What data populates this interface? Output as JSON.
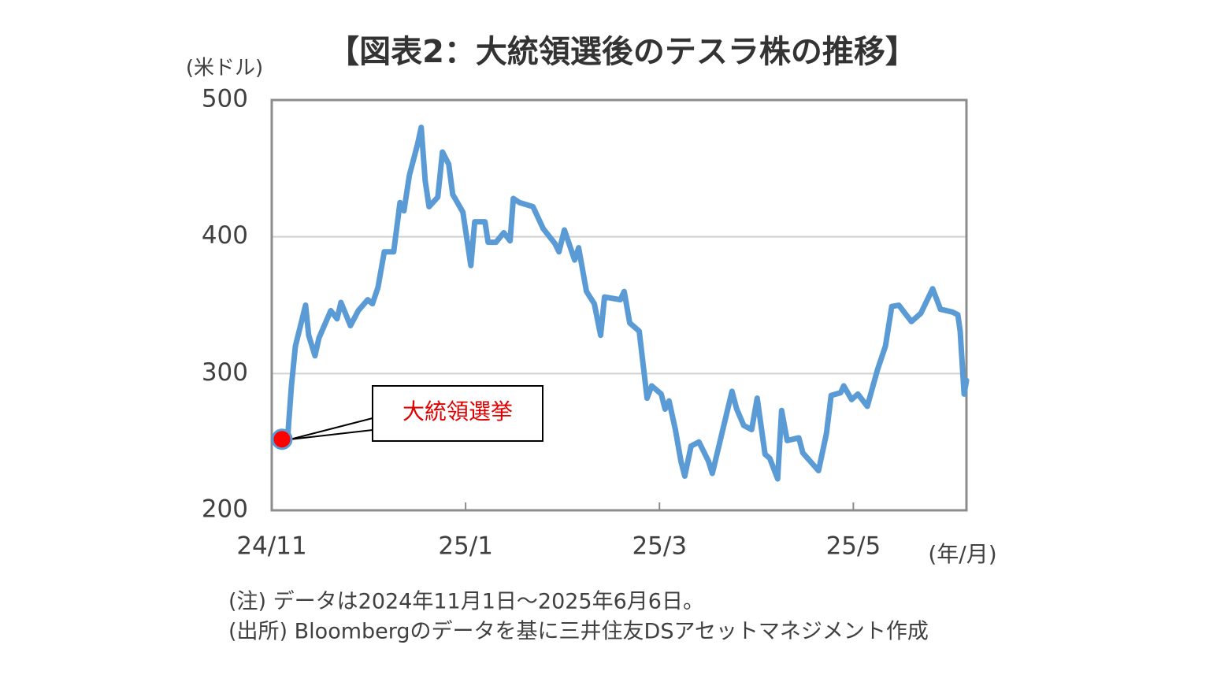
{
  "chart_data": {
    "type": "line",
    "title": "【図表2：大統領選後のテスラ株の推移】",
    "y_label": "(米ドル)",
    "x_label": "(年/月)",
    "annotation": "大統領選挙",
    "notes": [
      "(注) データは2024年11月1日～2025年6月6日。",
      "(出所) Bloombergのデータを基に三井住友DSアセットマネジメント作成"
    ],
    "x": [
      0.057,
      0.162,
      0.203,
      0.244,
      0.349,
      0.381,
      0.446,
      0.487,
      0.609,
      0.674,
      0.714,
      0.812,
      0.893,
      0.99,
      1.039,
      1.096,
      1.161,
      1.258,
      1.323,
      1.364,
      1.42,
      1.502,
      1.542,
      1.583,
      1.623,
      1.713,
      1.761,
      1.826,
      1.867,
      1.972,
      2.054,
      2.094,
      2.2,
      2.232,
      2.313,
      2.394,
      2.459,
      2.492,
      2.557,
      2.695,
      2.8,
      2.922,
      2.963,
      3.019,
      3.125,
      3.166,
      3.247,
      3.328,
      3.393,
      3.433,
      3.596,
      3.636,
      3.693,
      3.791,
      3.872,
      3.92,
      4.018,
      4.058,
      4.099,
      4.164,
      4.221,
      4.261,
      4.326,
      4.407,
      4.505,
      4.545,
      4.586,
      4.748,
      4.797,
      4.87,
      4.951,
      5.008,
      5.089,
      5.138,
      5.219,
      5.26,
      5.317,
      5.438,
      5.479,
      5.641,
      5.722,
      5.771,
      5.869,
      5.901,
      5.982,
      6.047,
      6.144,
      6.25,
      6.331,
      6.396,
      6.469,
      6.599,
      6.696,
      6.818,
      6.899,
      7.021,
      7.078,
      7.102,
      7.143,
      7.167
    ],
    "series": [
      {
        "name": "テスラ株",
        "color": "#5b9bd5",
        "values": [
          252,
          251,
          291,
          320,
          350,
          328,
          313,
          326,
          346,
          340,
          352,
          335,
          346,
          354,
          351,
          363,
          389,
          389,
          425,
          419,
          445,
          467,
          480,
          441,
          422,
          429,
          462,
          453,
          431,
          418,
          379,
          411,
          411,
          396,
          396,
          403,
          397,
          428,
          425,
          422,
          406,
          395,
          389,
          405,
          383,
          392,
          360,
          351,
          328,
          356,
          354,
          360,
          337,
          331,
          282,
          291,
          285,
          274,
          280,
          259,
          236,
          225,
          247,
          250,
          236,
          227,
          239,
          287,
          274,
          262,
          259,
          282,
          241,
          238,
          223,
          273,
          251,
          253,
          242,
          229,
          256,
          284,
          286,
          291,
          281,
          285,
          276,
          303,
          320,
          349,
          350,
          338,
          344,
          362,
          347,
          345,
          343,
          331,
          285,
          295
        ]
      }
    ],
    "xlim": [
      0,
      7.167
    ],
    "xticks": [
      {
        "value": 0,
        "label": "24/11"
      },
      {
        "value": 2,
        "label": "25/1"
      },
      {
        "value": 4,
        "label": "25/3"
      },
      {
        "value": 6,
        "label": "25/5"
      }
    ],
    "ylim": [
      200,
      500
    ],
    "yticks": [
      200,
      300,
      400,
      500
    ],
    "grid": true,
    "marker_color": "#ff0000"
  }
}
